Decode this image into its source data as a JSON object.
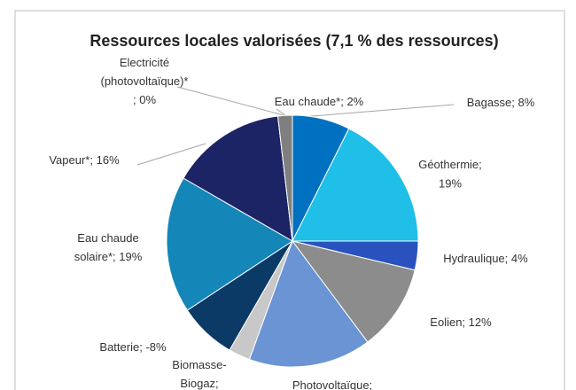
{
  "chart_data": {
    "type": "pie",
    "title": "Ressources locales valorisées (7,1 % des ressources)",
    "categories": [
      [
        "Bagasse;"
      ],
      [
        "Géothermie;"
      ],
      [
        "Hydraulique;"
      ],
      [
        "Eolien;"
      ],
      [
        "Photovoltaïque;"
      ],
      [
        "Biomasse-",
        "Biogaz;"
      ],
      [
        "Batterie;"
      ],
      [
        "Eau chaude",
        "solaire*;"
      ],
      [
        "Vapeur*;"
      ],
      [
        "Electricité",
        "(photovoltaïque)*",
        ";"
      ],
      [
        "Eau chaude*;"
      ]
    ],
    "values": [
      8,
      19,
      4,
      12,
      17,
      3,
      -8,
      19,
      16,
      0,
      2
    ],
    "value_labels": [
      "8%",
      "19%",
      "4%",
      "12%",
      null,
      null,
      "-8%",
      "19%",
      "16%",
      "0%",
      "2%"
    ],
    "colors": [
      "#0070c0",
      "#1fbfe8",
      "#2a52be",
      "#8c8c8c",
      "#6a94d4",
      "#c8c8c8",
      "#0b3a66",
      "#1586b8",
      "#1c2466",
      "#6d6d6d",
      "#7f7f7f"
    ]
  }
}
